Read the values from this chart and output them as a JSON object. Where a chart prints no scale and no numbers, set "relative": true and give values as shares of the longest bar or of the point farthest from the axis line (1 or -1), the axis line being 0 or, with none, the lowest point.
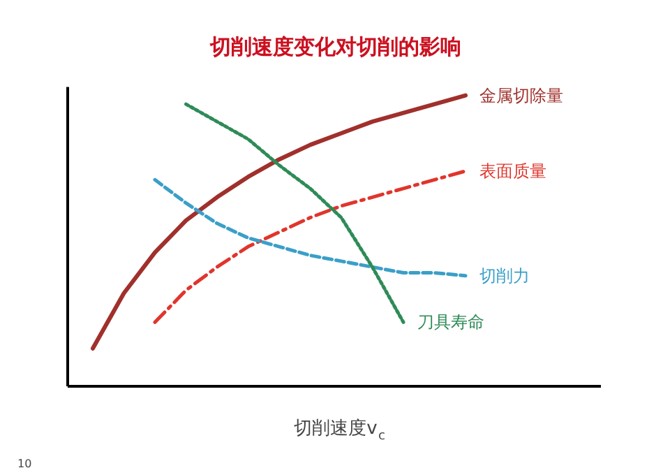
{
  "chart_data": {
    "type": "line",
    "title": "切削速度变化对切削的影响",
    "xlabel": "切削速度v$_{c}$",
    "relative": true,
    "legend": false,
    "grid": false,
    "categories": [
      null,
      null,
      null,
      null,
      null,
      null,
      null,
      null,
      null,
      null,
      null,
      null,
      null
    ],
    "series": [
      {
        "name": "金属切除量",
        "color": "#a0302c",
        "line_style": "solid",
        "values": [
          0.13,
          0.32,
          0.46,
          0.57,
          0.65,
          0.72,
          0.78,
          0.83,
          0.87,
          0.91,
          0.94,
          0.97,
          1.0
        ]
      },
      {
        "name": "表面质量",
        "color": "#e0352c",
        "line_style": "dashdot",
        "values": [
          null,
          null,
          0.22,
          0.33,
          0.41,
          0.48,
          0.53,
          0.58,
          0.62,
          0.65,
          0.68,
          0.71,
          0.74
        ]
      },
      {
        "name": "切削力",
        "color": "#3a9fc8",
        "line_style": "dashed",
        "values": [
          null,
          null,
          0.71,
          0.63,
          0.56,
          0.51,
          0.48,
          0.45,
          0.43,
          0.41,
          0.39,
          0.39,
          0.38
        ]
      },
      {
        "name": "刀具寿命",
        "color": "#2e8b57",
        "line_style": "dotted",
        "values": [
          null,
          null,
          null,
          0.97,
          0.91,
          0.85,
          0.76,
          0.68,
          0.58,
          0.41,
          0.22,
          null,
          null
        ]
      }
    ],
    "annotations": [
      "10"
    ]
  }
}
